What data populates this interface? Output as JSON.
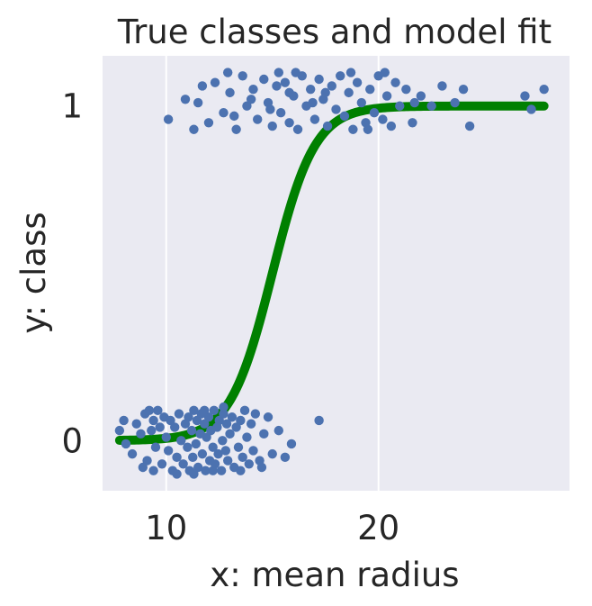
{
  "chart_data": {
    "type": "scatter",
    "title": "True classes and model fit",
    "xlabel": "x: mean radius",
    "ylabel": "y: class",
    "xlim": [
      7.0,
      29.0
    ],
    "ylim": [
      -0.15,
      1.15
    ],
    "xticks": [
      10,
      20
    ],
    "xtick_labels": [
      "10",
      "20"
    ],
    "yticks": [
      0,
      1
    ],
    "ytick_labels": [
      "0",
      "1"
    ],
    "grid": true,
    "series": [
      {
        "type": "scatter",
        "color": "#4c72b0",
        "points": [
          [
            7.8,
            0.03
          ],
          [
            8.1,
            -0.01
          ],
          [
            8.4,
            -0.04
          ],
          [
            8.6,
            0.05
          ],
          [
            8.8,
            0.02
          ],
          [
            8.9,
            -0.08
          ],
          [
            9.0,
            0.08
          ],
          [
            9.1,
            -0.06
          ],
          [
            9.2,
            0.09
          ],
          [
            9.3,
            0.03
          ],
          [
            9.4,
            0.06
          ],
          [
            9.5,
            -0.02
          ],
          [
            9.6,
            0.09
          ],
          [
            9.7,
            0.04
          ],
          [
            9.8,
            -0.07
          ],
          [
            9.9,
            0.07
          ],
          [
            10.0,
            0.01
          ],
          [
            10.1,
            -0.03
          ],
          [
            10.2,
            0.06
          ],
          [
            10.3,
            -0.09
          ],
          [
            10.4,
            0.04
          ],
          [
            10.5,
            -0.05
          ],
          [
            10.6,
            0.08
          ],
          [
            10.7,
            0.0
          ],
          [
            10.8,
            -0.07
          ],
          [
            10.9,
            0.05
          ],
          [
            11.0,
            -0.02
          ],
          [
            11.05,
            0.07
          ],
          [
            11.1,
            -0.09
          ],
          [
            11.2,
            0.03
          ],
          [
            11.25,
            -0.05
          ],
          [
            11.3,
            0.09
          ],
          [
            11.4,
            -0.01
          ],
          [
            11.45,
            0.06
          ],
          [
            11.5,
            -0.08
          ],
          [
            11.6,
            0.02
          ],
          [
            11.65,
            0.08
          ],
          [
            11.7,
            -0.04
          ],
          [
            11.8,
            0.05
          ],
          [
            11.85,
            -0.09
          ],
          [
            11.9,
            0.01
          ],
          [
            12.0,
            0.07
          ],
          [
            12.05,
            -0.06
          ],
          [
            12.1,
            0.03
          ],
          [
            12.2,
            -0.02
          ],
          [
            12.25,
            0.09
          ],
          [
            12.3,
            -0.07
          ],
          [
            12.4,
            0.04
          ],
          [
            12.45,
            -0.04
          ],
          [
            12.5,
            0.06
          ],
          [
            12.6,
            -0.09
          ],
          [
            12.65,
            0.0
          ],
          [
            12.7,
            0.08
          ],
          [
            12.8,
            -0.03
          ],
          [
            12.85,
            0.05
          ],
          [
            12.9,
            -0.06
          ],
          [
            13.0,
            0.02
          ],
          [
            13.1,
            0.07
          ],
          [
            13.2,
            -0.08
          ],
          [
            13.3,
            0.04
          ],
          [
            13.4,
            -0.02
          ],
          [
            13.5,
            0.06
          ],
          [
            13.6,
            -0.05
          ],
          [
            13.7,
            0.09
          ],
          [
            13.8,
            0.01
          ],
          [
            13.9,
            -0.07
          ],
          [
            14.0,
            0.05
          ],
          [
            14.1,
            -0.03
          ],
          [
            14.2,
            0.08
          ],
          [
            14.4,
            -0.06
          ],
          [
            14.6,
            0.02
          ],
          [
            14.8,
            0.07
          ],
          [
            15.0,
            -0.04
          ],
          [
            15.3,
            0.03
          ],
          [
            15.6,
            -0.05
          ],
          [
            15.9,
            -0.01
          ],
          [
            17.2,
            0.06
          ],
          [
            11.3,
            -0.1
          ],
          [
            12.2,
            -0.09
          ],
          [
            13.5,
            -0.09
          ],
          [
            14.5,
            -0.08
          ],
          [
            8.0,
            0.06
          ],
          [
            9.4,
            -0.09
          ],
          [
            10.5,
            -0.1
          ],
          [
            12.7,
            0.1
          ],
          [
            11.8,
            0.09
          ],
          [
            10.1,
            0.96
          ],
          [
            10.9,
            1.02
          ],
          [
            11.3,
            0.93
          ],
          [
            11.7,
            1.06
          ],
          [
            12.0,
            0.95
          ],
          [
            12.3,
            1.07
          ],
          [
            12.7,
            0.98
          ],
          [
            13.0,
            1.04
          ],
          [
            13.3,
            0.93
          ],
          [
            13.6,
            1.09
          ],
          [
            13.8,
            1.0
          ],
          [
            14.1,
            1.05
          ],
          [
            14.3,
            0.96
          ],
          [
            14.6,
            1.08
          ],
          [
            14.8,
            1.01
          ],
          [
            15.0,
            0.94
          ],
          [
            15.2,
            1.06
          ],
          [
            15.4,
            0.98
          ],
          [
            15.6,
            1.07
          ],
          [
            15.8,
            0.95
          ],
          [
            16.0,
            1.03
          ],
          [
            16.2,
            0.93
          ],
          [
            16.4,
            1.09
          ],
          [
            16.6,
            1.0
          ],
          [
            16.8,
            1.05
          ],
          [
            17.0,
            0.96
          ],
          [
            17.2,
            1.08
          ],
          [
            17.4,
            1.02
          ],
          [
            17.6,
            0.94
          ],
          [
            17.8,
            1.06
          ],
          [
            18.0,
            0.99
          ],
          [
            18.2,
            1.09
          ],
          [
            18.4,
            0.97
          ],
          [
            18.6,
            1.04
          ],
          [
            18.8,
            0.93
          ],
          [
            19.0,
            1.07
          ],
          [
            19.2,
            1.01
          ],
          [
            19.4,
            0.95
          ],
          [
            19.6,
            1.05
          ],
          [
            19.8,
            0.98
          ],
          [
            20.0,
            1.09
          ],
          [
            20.2,
            0.96
          ],
          [
            20.4,
            1.03
          ],
          [
            20.6,
            0.94
          ],
          [
            20.8,
            1.07
          ],
          [
            21.0,
            1.0
          ],
          [
            21.3,
            1.05
          ],
          [
            21.6,
            0.95
          ],
          [
            22.0,
            1.03
          ],
          [
            22.5,
            1.0
          ],
          [
            23.0,
            1.06
          ],
          [
            23.6,
            1.01
          ],
          [
            24.0,
            1.05
          ],
          [
            24.3,
            0.94
          ],
          [
            26.9,
            1.03
          ],
          [
            27.2,
            0.99
          ],
          [
            27.8,
            1.05
          ],
          [
            12.9,
            1.1
          ],
          [
            15.3,
            1.1
          ],
          [
            14.0,
            1.02
          ],
          [
            16.1,
            1.1
          ],
          [
            18.7,
            1.1
          ],
          [
            20.3,
            1.1
          ],
          [
            13.2,
            0.97
          ],
          [
            17.5,
            1.04
          ],
          [
            19.5,
            0.93
          ],
          [
            15.8,
            1.04
          ],
          [
            21.7,
            1.01
          ],
          [
            11.5,
            1.01
          ],
          [
            14.9,
            0.99
          ],
          [
            16.9,
            1.01
          ]
        ]
      },
      {
        "type": "line",
        "color": "#008000",
        "x0": 7.8,
        "x1": 27.8,
        "logit_midpoint": 15.0,
        "logit_slope": 1.0
      }
    ]
  }
}
